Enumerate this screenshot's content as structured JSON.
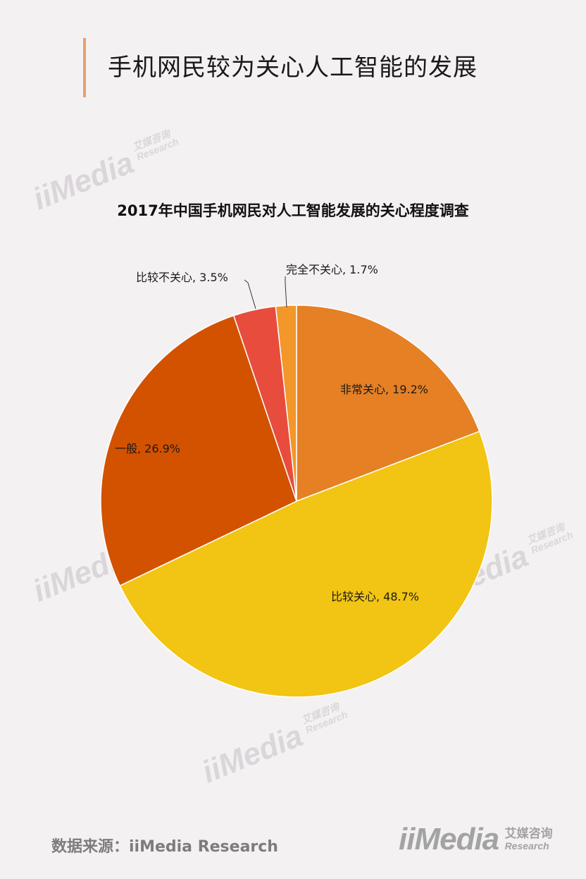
{
  "header": {
    "title": "手机网民较为关心人工智能的发展"
  },
  "watermark": {
    "brand": "iiMedia",
    "cn": "艾媒咨询",
    "en": "Research"
  },
  "footer": {
    "source": "数据来源：iiMedia Research",
    "logo_brand": "iiMedia",
    "logo_cn": "艾媒咨询",
    "logo_en": "Research"
  },
  "colors": {
    "very_concerned": "#e58024",
    "fairly_concerned": "#f2c413",
    "neutral": "#d25200",
    "not_very_concerned": "#e84c3d",
    "not_at_all": "#f3972a"
  },
  "chart_data": {
    "type": "pie",
    "title": "2017年中国手机网民对人工智能发展的关心程度调查",
    "slices": [
      {
        "label": "非常关心, 19.2%",
        "name": "非常关心",
        "value": 19.2,
        "color": "#e58024"
      },
      {
        "label": "比较关心, 48.7%",
        "name": "比较关心",
        "value": 48.7,
        "color": "#f2c413"
      },
      {
        "label": "一般, 26.9%",
        "name": "一般",
        "value": 26.9,
        "color": "#d25200"
      },
      {
        "label": "比较不关心, 3.5%",
        "name": "比较不关心",
        "value": 3.5,
        "color": "#e84c3d"
      },
      {
        "label": "完全不关心, 1.7%",
        "name": "完全不关心",
        "value": 1.7,
        "color": "#f3972a"
      }
    ],
    "start_angle": "12 o'clock",
    "direction": "clockwise",
    "legend": "none"
  }
}
